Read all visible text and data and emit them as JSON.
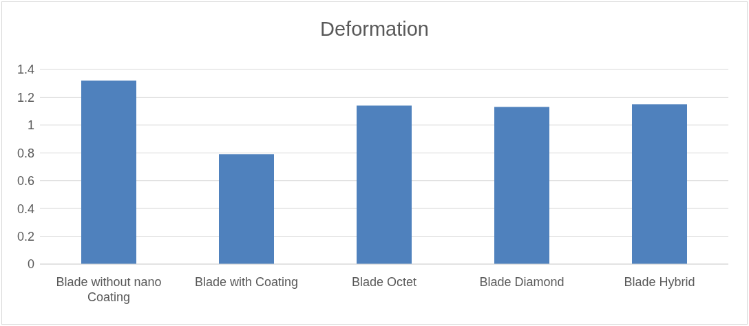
{
  "chart_data": {
    "type": "bar",
    "title": "Deformation",
    "categories": [
      "Blade without nano Coating",
      "Blade with Coating",
      "Blade Octet",
      "Blade Diamond",
      "Blade Hybrid"
    ],
    "values": [
      1.32,
      0.79,
      1.14,
      1.13,
      1.15
    ],
    "color": "#4f81bd",
    "ylim": [
      0,
      1.4
    ],
    "yticks": [
      0,
      0.2,
      0.4,
      0.6,
      0.8,
      1,
      1.2,
      1.4
    ],
    "grid": "y"
  }
}
